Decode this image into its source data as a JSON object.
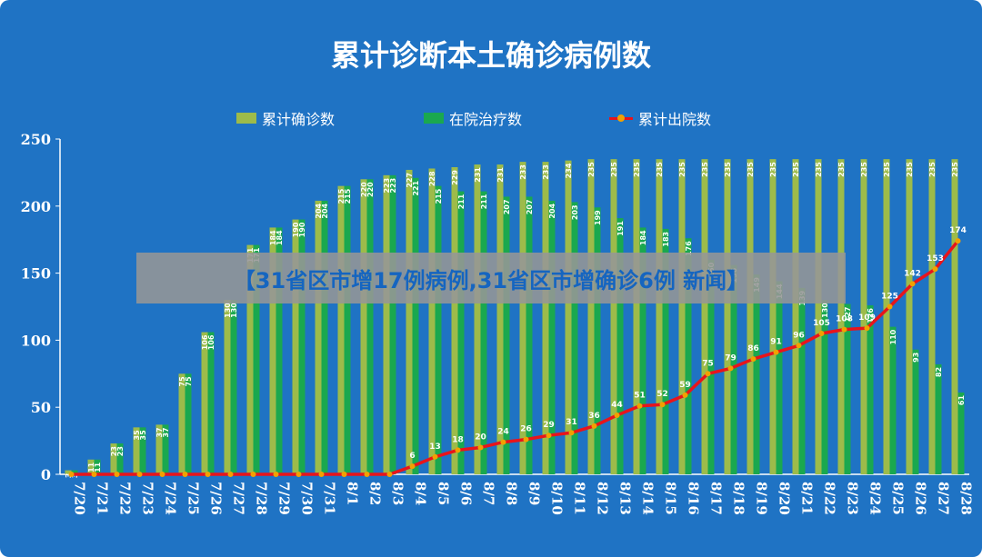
{
  "colors": {
    "background": "#1f73c4",
    "cumulative_bar": "#9dbb4a",
    "hospital_bar": "#1aa84f",
    "discharged_line": "#e8141b",
    "discharged_marker": "#f2a100",
    "text": "#ffffff",
    "banner_text": "#1565c0"
  },
  "banner": {
    "text": "【31省区市增17例病例,31省区市增确诊6例 新闻】"
  },
  "chart_data": {
    "type": "bar",
    "title": "累计诊断本土确诊病例数",
    "legend_position": "top",
    "grid": false,
    "ylim": [
      0,
      250
    ],
    "yticks": [
      0,
      50,
      100,
      150,
      200,
      250
    ],
    "categories": [
      "7/20",
      "7/21",
      "7/22",
      "7/23",
      "7/24",
      "7/25",
      "7/26",
      "7/27",
      "7/28",
      "7/29",
      "7/30",
      "7/31",
      "8/1",
      "8/2",
      "8/3",
      "8/4",
      "8/5",
      "8/6",
      "8/7",
      "8/8",
      "8/9",
      "8/10",
      "8/11",
      "8/12",
      "8/13",
      "8/14",
      "8/15",
      "8/16",
      "8/17",
      "8/18",
      "8/19",
      "8/20",
      "8/21",
      "8/22",
      "8/23",
      "8/24",
      "8/25",
      "8/26",
      "8/27",
      "8/28"
    ],
    "series": [
      {
        "name": "累计确诊数",
        "type": "bar",
        "values": [
          3,
          11,
          23,
          35,
          37,
          75,
          106,
          130,
          171,
          184,
          190,
          204,
          215,
          220,
          223,
          227,
          228,
          229,
          231,
          231,
          233,
          233,
          234,
          235,
          235,
          235,
          235,
          235,
          235,
          235,
          235,
          235,
          235,
          235,
          235,
          235,
          235,
          235,
          235,
          235
        ]
      },
      {
        "name": "在院治疗数",
        "type": "bar",
        "values": [
          3,
          11,
          23,
          35,
          37,
          75,
          106,
          130,
          171,
          184,
          190,
          204,
          215,
          220,
          223,
          221,
          215,
          211,
          211,
          207,
          207,
          204,
          203,
          199,
          191,
          184,
          183,
          176,
          160,
          156,
          149,
          144,
          139,
          130,
          127,
          126,
          110,
          93,
          82,
          61
        ]
      },
      {
        "name": "累计出院数",
        "type": "line",
        "values": [
          0,
          0,
          0,
          0,
          0,
          0,
          0,
          0,
          0,
          0,
          0,
          0,
          0,
          0,
          0,
          6,
          13,
          18,
          20,
          24,
          26,
          29,
          31,
          36,
          44,
          51,
          52,
          59,
          75,
          79,
          86,
          91,
          96,
          105,
          108,
          109,
          125,
          142,
          153,
          174
        ]
      }
    ],
    "data_labels": {
      "cumulative": [
        "3",
        "11",
        "23",
        "35",
        "37",
        "75",
        "106",
        "130",
        "171",
        "184",
        "190",
        "204",
        "215",
        "220",
        "223",
        "227",
        "228",
        "229",
        "231",
        "231",
        "233",
        "233",
        "234",
        "235",
        "235",
        "235",
        "235",
        "235",
        "235",
        "235",
        "235",
        "235",
        "235",
        "235",
        "235",
        "235",
        "235",
        "235",
        "235",
        "235"
      ],
      "hospital": [
        "3",
        "11",
        "23",
        "35",
        "37",
        "75",
        "106",
        "130",
        "171",
        "184",
        "190",
        "204",
        "215",
        "220",
        "223",
        "221",
        "215",
        "211",
        "211",
        "207",
        "207",
        "204",
        "203",
        "199",
        "191",
        "184",
        "183",
        "176",
        "160",
        "156",
        "149",
        "144",
        "139",
        "130",
        "127",
        "126",
        "110",
        "93",
        "82",
        "61"
      ],
      "discharged": [
        "",
        "",
        "",
        "",
        "",
        "",
        "",
        "",
        "",
        "",
        "",
        "",
        "",
        "",
        "",
        "6",
        "13",
        "18",
        "20",
        "24",
        "26",
        "29",
        "31",
        "36",
        "44",
        "51",
        "52",
        "59",
        "75",
        "79",
        "86",
        "91",
        "96",
        "105",
        "108",
        "109",
        "125",
        "142",
        "153",
        "174"
      ]
    }
  }
}
